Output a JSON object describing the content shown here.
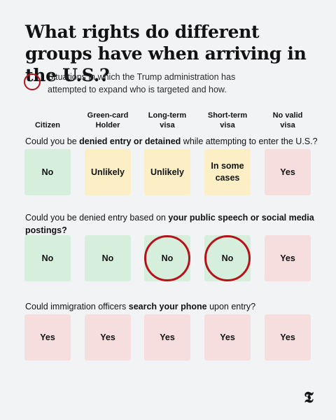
{
  "title": "What rights do different groups have when arriving in the U.S.?",
  "legend": {
    "text": "Situations in which the Trump administration has attempted to expand who is targeted and how."
  },
  "columns": [
    "Citizen",
    "Green-card\nHolder",
    "Long-term\nvisa",
    "Short-term\nvisa",
    "No valid\nvisa"
  ],
  "questions": [
    {
      "pre": "Could you be ",
      "bold": "denied entry or detained",
      "post": " while attempting to enter the U.S.?",
      "answers": [
        {
          "text": "No",
          "color": "green",
          "circled": false
        },
        {
          "text": "Unlikely",
          "color": "yellow",
          "circled": false
        },
        {
          "text": "Unlikely",
          "color": "yellow",
          "circled": false
        },
        {
          "text": "In some\ncases",
          "color": "yellow",
          "circled": false
        },
        {
          "text": "Yes",
          "color": "red",
          "circled": false
        }
      ]
    },
    {
      "pre": "Could you be denied entry based on ",
      "bold": "your public speech or social media postings?",
      "post": "",
      "answers": [
        {
          "text": "No",
          "color": "green",
          "circled": false
        },
        {
          "text": "No",
          "color": "green",
          "circled": false
        },
        {
          "text": "No",
          "color": "green",
          "circled": true
        },
        {
          "text": "No",
          "color": "green",
          "circled": true
        },
        {
          "text": "Yes",
          "color": "red",
          "circled": false
        }
      ]
    },
    {
      "pre": "Could immigration officers ",
      "bold": "search your phone",
      "post": " upon entry?",
      "answers": [
        {
          "text": "Yes",
          "color": "red",
          "circled": false
        },
        {
          "text": "Yes",
          "color": "red",
          "circled": false
        },
        {
          "text": "Yes",
          "color": "red",
          "circled": false
        },
        {
          "text": "Yes",
          "color": "red",
          "circled": false
        },
        {
          "text": "Yes",
          "color": "red",
          "circled": false
        }
      ]
    }
  ],
  "logo": "𝕿"
}
